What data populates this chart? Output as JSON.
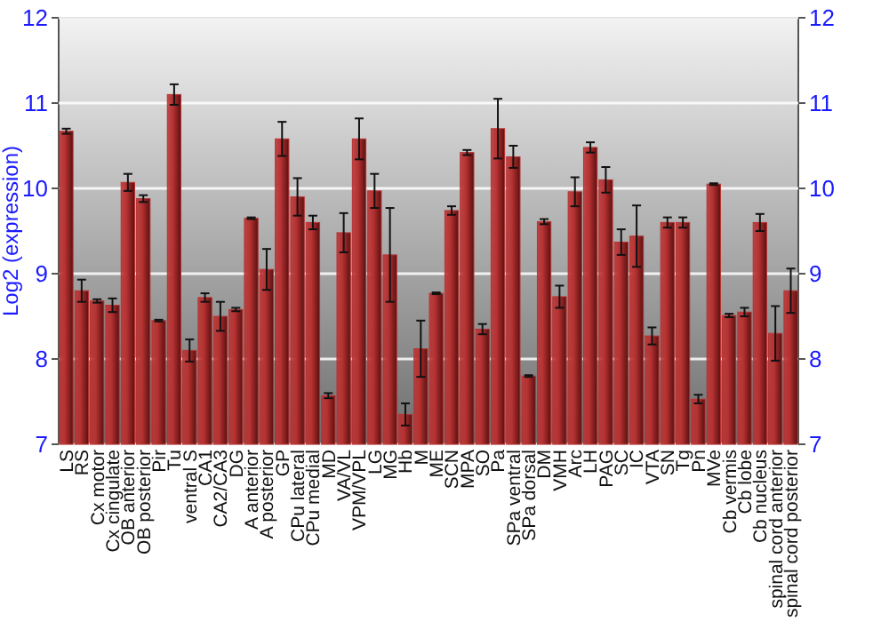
{
  "chart_data": {
    "type": "bar",
    "ylabel": "Log2 (expression)",
    "categories": [
      "LS",
      "RS",
      "Cx motor",
      "Cx cingulate",
      "OB anterior",
      "OB posterior",
      "Pir",
      "Tu",
      "ventral S",
      "CA1",
      "CA2/CA3",
      "DG",
      "A anterior",
      "A posterior",
      "GP",
      "CPu lateral",
      "CPu medial",
      "MD",
      "VA/VL",
      "VPM/VPL",
      "LG",
      "MG",
      "Hb",
      "M",
      "ME",
      "SCN",
      "MPA",
      "SO",
      "Pa",
      "SPa ventral",
      "SPa dorsal",
      "DM",
      "VMH",
      "Arc",
      "LH",
      "PAG",
      "SC",
      "IC",
      "VTA",
      "SN",
      "Tg",
      "Pn",
      "MVe",
      "Cb vermis",
      "Cb lobe",
      "Cb nucleus",
      "spinal cord anterior",
      "spinal cord posterior"
    ],
    "values": [
      10.67,
      8.8,
      8.68,
      8.63,
      10.07,
      9.88,
      8.45,
      11.1,
      8.1,
      8.72,
      8.5,
      8.58,
      9.65,
      9.05,
      10.58,
      9.9,
      9.6,
      7.57,
      9.48,
      10.58,
      9.97,
      9.22,
      7.35,
      8.12,
      8.77,
      9.74,
      10.42,
      8.35,
      10.7,
      10.37,
      7.8,
      9.61,
      8.73,
      9.96,
      10.48,
      10.1,
      9.37,
      9.44,
      8.27,
      9.6,
      9.6,
      7.53,
      10.05,
      8.51,
      8.55,
      9.6,
      8.3,
      8.8
    ],
    "errors": [
      0.03,
      0.13,
      0.02,
      0.08,
      0.1,
      0.04,
      0.01,
      0.12,
      0.13,
      0.05,
      0.17,
      0.02,
      0.01,
      0.24,
      0.2,
      0.22,
      0.08,
      0.03,
      0.23,
      0.24,
      0.2,
      0.55,
      0.13,
      0.33,
      0.01,
      0.05,
      0.03,
      0.06,
      0.35,
      0.13,
      0.01,
      0.03,
      0.13,
      0.17,
      0.06,
      0.15,
      0.15,
      0.36,
      0.1,
      0.06,
      0.06,
      0.05,
      0.01,
      0.02,
      0.05,
      0.1,
      0.32,
      0.26
    ],
    "color": "#b83232",
    "ylim": [
      7,
      12
    ],
    "yticks": [
      7,
      8,
      9,
      10,
      11,
      12
    ],
    "y2lim": [
      7,
      12
    ],
    "y2ticks": [
      7,
      8,
      9,
      10,
      11,
      12
    ],
    "grid": "y"
  }
}
